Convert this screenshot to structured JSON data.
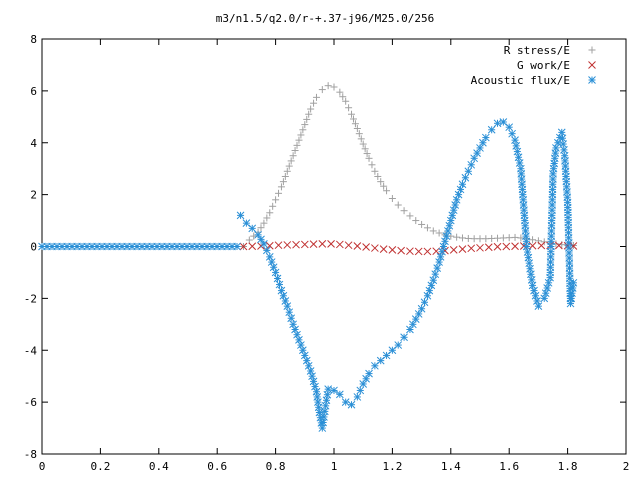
{
  "chart_data": {
    "type": "scatter",
    "title": "m3/n1.5/q2.0/r-+.37-j96/M25.0/256",
    "xlabel": "",
    "ylabel": "",
    "xlim": [
      0,
      2
    ],
    "ylim": [
      -8,
      8
    ],
    "x_ticks": [
      "0",
      "0.2",
      "0.4",
      "0.6",
      "0.8",
      "1",
      "1.2",
      "1.4",
      "1.6",
      "1.8",
      "2"
    ],
    "y_ticks": [
      "-8",
      "-6",
      "-4",
      "-2",
      "0",
      "2",
      "4",
      "6",
      "8"
    ],
    "grid": false,
    "legend_position": "top-right",
    "series": [
      {
        "name": "R stress/E",
        "marker": "plus",
        "color": "#a0a0a0",
        "points": [
          [
            0.69,
            0.0
          ],
          [
            0.71,
            0.25
          ],
          [
            0.74,
            0.55
          ],
          [
            0.76,
            0.9
          ],
          [
            0.78,
            1.3
          ],
          [
            0.8,
            1.8
          ],
          [
            0.82,
            2.3
          ],
          [
            0.84,
            2.9
          ],
          [
            0.86,
            3.5
          ],
          [
            0.88,
            4.1
          ],
          [
            0.9,
            4.7
          ],
          [
            0.92,
            5.3
          ],
          [
            0.94,
            5.75
          ],
          [
            0.96,
            6.05
          ],
          [
            0.98,
            6.2
          ],
          [
            1.0,
            6.15
          ],
          [
            1.02,
            5.95
          ],
          [
            1.04,
            5.6
          ],
          [
            1.06,
            5.1
          ],
          [
            1.08,
            4.55
          ],
          [
            1.1,
            3.95
          ],
          [
            1.12,
            3.4
          ],
          [
            1.14,
            2.9
          ],
          [
            1.16,
            2.5
          ],
          [
            1.18,
            2.15
          ],
          [
            1.2,
            1.85
          ],
          [
            1.22,
            1.6
          ],
          [
            1.24,
            1.38
          ],
          [
            1.26,
            1.18
          ],
          [
            1.28,
            1.0
          ],
          [
            1.3,
            0.85
          ],
          [
            1.32,
            0.72
          ],
          [
            1.34,
            0.6
          ],
          [
            1.36,
            0.52
          ],
          [
            1.38,
            0.45
          ],
          [
            1.4,
            0.4
          ],
          [
            1.42,
            0.36
          ],
          [
            1.44,
            0.33
          ],
          [
            1.46,
            0.31
          ],
          [
            1.48,
            0.3
          ],
          [
            1.5,
            0.3
          ],
          [
            1.52,
            0.3
          ],
          [
            1.54,
            0.31
          ],
          [
            1.56,
            0.32
          ],
          [
            1.58,
            0.33
          ],
          [
            1.6,
            0.34
          ],
          [
            1.62,
            0.35
          ],
          [
            1.64,
            0.33
          ],
          [
            1.66,
            0.3
          ],
          [
            1.68,
            0.26
          ],
          [
            1.7,
            0.22
          ],
          [
            1.72,
            0.18
          ],
          [
            1.74,
            0.14
          ],
          [
            1.76,
            0.1
          ],
          [
            1.78,
            0.07
          ],
          [
            1.8,
            0.05
          ],
          [
            1.82,
            0.04
          ]
        ]
      },
      {
        "name": "G work/E",
        "marker": "cross",
        "color": "#c03030",
        "points": [
          [
            0.69,
            0.0
          ],
          [
            0.72,
            0.01
          ],
          [
            0.75,
            0.02
          ],
          [
            0.78,
            0.03
          ],
          [
            0.81,
            0.05
          ],
          [
            0.84,
            0.06
          ],
          [
            0.87,
            0.07
          ],
          [
            0.9,
            0.08
          ],
          [
            0.93,
            0.09
          ],
          [
            0.96,
            0.1
          ],
          [
            0.99,
            0.1
          ],
          [
            1.02,
            0.08
          ],
          [
            1.05,
            0.05
          ],
          [
            1.08,
            0.02
          ],
          [
            1.11,
            -0.02
          ],
          [
            1.14,
            -0.06
          ],
          [
            1.17,
            -0.1
          ],
          [
            1.2,
            -0.13
          ],
          [
            1.23,
            -0.16
          ],
          [
            1.26,
            -0.18
          ],
          [
            1.29,
            -0.19
          ],
          [
            1.32,
            -0.19
          ],
          [
            1.35,
            -0.18
          ],
          [
            1.38,
            -0.16
          ],
          [
            1.41,
            -0.13
          ],
          [
            1.44,
            -0.1
          ],
          [
            1.47,
            -0.07
          ],
          [
            1.5,
            -0.05
          ],
          [
            1.53,
            -0.03
          ],
          [
            1.56,
            -0.01
          ],
          [
            1.59,
            0.0
          ],
          [
            1.62,
            0.01
          ],
          [
            1.65,
            0.02
          ],
          [
            1.68,
            0.03
          ],
          [
            1.71,
            0.04
          ],
          [
            1.74,
            0.04
          ],
          [
            1.77,
            0.04
          ],
          [
            1.8,
            0.03
          ],
          [
            1.82,
            0.02
          ]
        ]
      },
      {
        "name": "Acoustic flux/E",
        "marker": "star",
        "color": "#2a8fd6",
        "points": [
          [
            0.68,
            1.2
          ],
          [
            0.7,
            0.9
          ],
          [
            0.72,
            0.7
          ],
          [
            0.74,
            0.45
          ],
          [
            0.76,
            0.1
          ],
          [
            0.78,
            -0.4
          ],
          [
            0.8,
            -1.0
          ],
          [
            0.82,
            -1.7
          ],
          [
            0.84,
            -2.3
          ],
          [
            0.86,
            -3.0
          ],
          [
            0.88,
            -3.6
          ],
          [
            0.9,
            -4.2
          ],
          [
            0.92,
            -4.8
          ],
          [
            0.94,
            -5.6
          ],
          [
            0.95,
            -6.4
          ],
          [
            0.96,
            -7.0
          ],
          [
            0.98,
            -5.5
          ],
          [
            1.0,
            -5.55
          ],
          [
            1.02,
            -5.7
          ],
          [
            1.04,
            -6.0
          ],
          [
            1.06,
            -6.1
          ],
          [
            1.08,
            -5.8
          ],
          [
            1.1,
            -5.3
          ],
          [
            1.12,
            -4.9
          ],
          [
            1.14,
            -4.6
          ],
          [
            1.16,
            -4.4
          ],
          [
            1.18,
            -4.2
          ],
          [
            1.2,
            -4.0
          ],
          [
            1.22,
            -3.8
          ],
          [
            1.24,
            -3.5
          ],
          [
            1.26,
            -3.2
          ],
          [
            1.28,
            -2.8
          ],
          [
            1.3,
            -2.4
          ],
          [
            1.32,
            -1.9
          ],
          [
            1.34,
            -1.3
          ],
          [
            1.36,
            -0.6
          ],
          [
            1.38,
            0.2
          ],
          [
            1.4,
            1.0
          ],
          [
            1.42,
            1.8
          ],
          [
            1.44,
            2.4
          ],
          [
            1.46,
            2.9
          ],
          [
            1.48,
            3.4
          ],
          [
            1.5,
            3.8
          ],
          [
            1.52,
            4.2
          ],
          [
            1.54,
            4.5
          ],
          [
            1.56,
            4.75
          ],
          [
            1.58,
            4.8
          ],
          [
            1.6,
            4.6
          ],
          [
            1.62,
            4.1
          ],
          [
            1.64,
            3.0
          ],
          [
            1.66,
            0.0
          ],
          [
            1.68,
            -1.5
          ],
          [
            1.7,
            -2.3
          ],
          [
            1.72,
            -2.0
          ],
          [
            1.74,
            -1.2
          ],
          [
            1.75,
            2.8
          ],
          [
            1.76,
            3.8
          ],
          [
            1.78,
            4.4
          ],
          [
            1.79,
            3.5
          ],
          [
            1.8,
            1.7
          ],
          [
            1.81,
            -2.2
          ],
          [
            1.82,
            -1.4
          ]
        ]
      }
    ]
  }
}
